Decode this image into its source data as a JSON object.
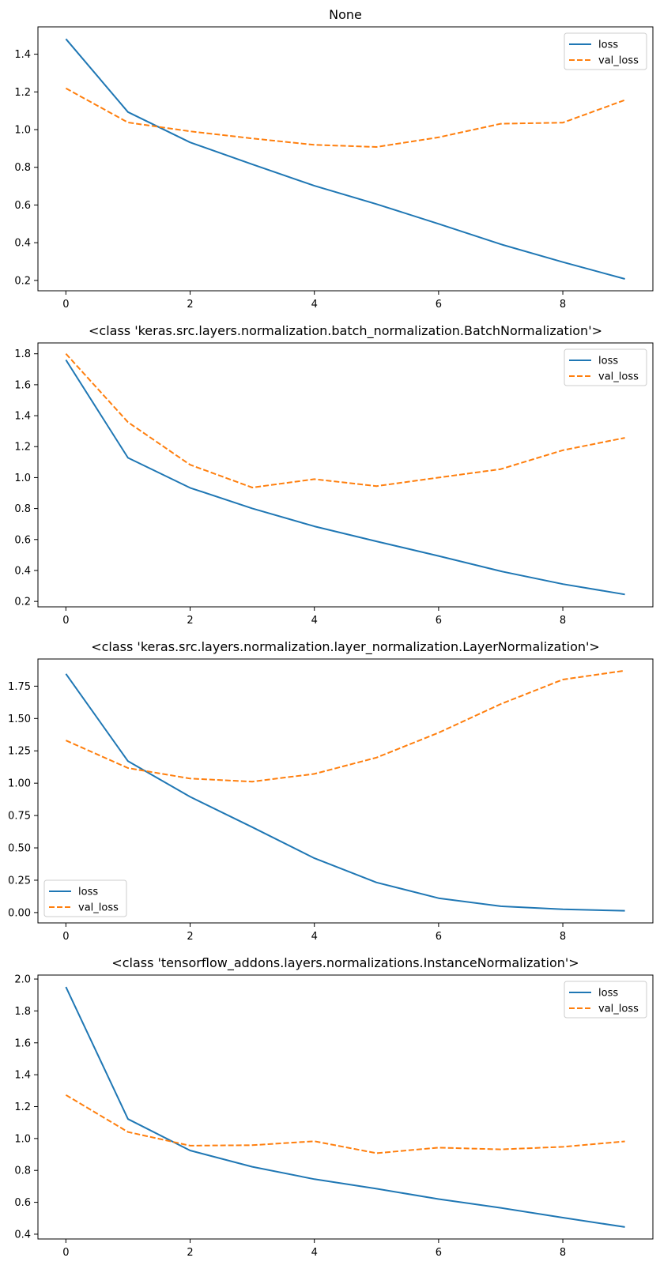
{
  "colors": {
    "loss": "#1f77b4",
    "val_loss": "#ff7f0e",
    "axes": "#000000",
    "legend_border": "#cccccc"
  },
  "chart_data": [
    {
      "type": "line",
      "title": "None",
      "x": [
        0,
        1,
        2,
        3,
        4,
        5,
        6,
        7,
        8,
        9
      ],
      "xlim": [
        -0.45,
        9.45
      ],
      "ylim": [
        0.145,
        1.545
      ],
      "xticks": [
        0,
        2,
        4,
        6,
        8
      ],
      "yticks": [
        0.2,
        0.4,
        0.6,
        0.8,
        1.0,
        1.2,
        1.4
      ],
      "ytick_labels": [
        "0.2",
        "0.4",
        "0.6",
        "0.8",
        "1.0",
        "1.2",
        "1.4"
      ],
      "legend": "upper-right",
      "series": [
        {
          "name": "loss",
          "style": "solid",
          "values": [
            1.481,
            1.093,
            0.932,
            0.816,
            0.702,
            0.605,
            0.5,
            0.392,
            0.297,
            0.208
          ]
        },
        {
          "name": "val_loss",
          "style": "dashed",
          "values": [
            1.219,
            1.038,
            0.991,
            0.953,
            0.919,
            0.908,
            0.959,
            1.031,
            1.037,
            1.157
          ]
        }
      ]
    },
    {
      "type": "line",
      "title": "<class 'keras.src.layers.normalization.batch_normalization.BatchNormalization'>",
      "x": [
        0,
        1,
        2,
        3,
        4,
        5,
        6,
        7,
        8,
        9
      ],
      "xlim": [
        -0.45,
        9.45
      ],
      "ylim": [
        0.165,
        1.87
      ],
      "xticks": [
        0,
        2,
        4,
        6,
        8
      ],
      "yticks": [
        0.2,
        0.4,
        0.6,
        0.8,
        1.0,
        1.2,
        1.4,
        1.6,
        1.8
      ],
      "ytick_labels": [
        "0.2",
        "0.4",
        "0.6",
        "0.8",
        "1.0",
        "1.2",
        "1.4",
        "1.6",
        "1.8"
      ],
      "legend": "upper-right",
      "series": [
        {
          "name": "loss",
          "style": "solid",
          "values": [
            1.76,
            1.128,
            0.934,
            0.801,
            0.685,
            0.588,
            0.494,
            0.395,
            0.312,
            0.245
          ]
        },
        {
          "name": "val_loss",
          "style": "dashed",
          "values": [
            1.8,
            1.358,
            1.083,
            0.936,
            0.99,
            0.945,
            1.0,
            1.055,
            1.177,
            1.257
          ]
        }
      ]
    },
    {
      "type": "line",
      "title": "<class 'keras.src.layers.normalization.layer_normalization.LayerNormalization'>",
      "x": [
        0,
        1,
        2,
        3,
        4,
        5,
        6,
        7,
        8,
        9
      ],
      "xlim": [
        -0.45,
        9.45
      ],
      "ylim": [
        -0.08,
        1.96
      ],
      "xticks": [
        0,
        2,
        4,
        6,
        8
      ],
      "yticks": [
        0.0,
        0.25,
        0.5,
        0.75,
        1.0,
        1.25,
        1.5,
        1.75
      ],
      "ytick_labels": [
        "0.00",
        "0.25",
        "0.50",
        "0.75",
        "1.00",
        "1.25",
        "1.50",
        "1.75"
      ],
      "legend": "lower-left",
      "series": [
        {
          "name": "loss",
          "style": "solid",
          "values": [
            1.845,
            1.17,
            0.895,
            0.66,
            0.42,
            0.233,
            0.111,
            0.049,
            0.025,
            0.014
          ]
        },
        {
          "name": "val_loss",
          "style": "dashed",
          "values": [
            1.33,
            1.117,
            1.036,
            1.012,
            1.072,
            1.198,
            1.39,
            1.612,
            1.801,
            1.87
          ]
        }
      ]
    },
    {
      "type": "line",
      "title": "<class 'tensorflow_addons.layers.normalizations.InstanceNormalization'>",
      "x": [
        0,
        1,
        2,
        3,
        4,
        5,
        6,
        7,
        8,
        9
      ],
      "xlim": [
        -0.45,
        9.45
      ],
      "ylim": [
        0.37,
        2.025
      ],
      "xticks": [
        0,
        2,
        4,
        6,
        8
      ],
      "yticks": [
        0.4,
        0.6,
        0.8,
        1.0,
        1.2,
        1.4,
        1.6,
        1.8,
        2.0
      ],
      "ytick_labels": [
        "0.4",
        "0.6",
        "0.8",
        "1.0",
        "1.2",
        "1.4",
        "1.6",
        "1.8",
        "2.0"
      ],
      "legend": "upper-right",
      "series": [
        {
          "name": "loss",
          "style": "solid",
          "values": [
            1.95,
            1.122,
            0.925,
            0.823,
            0.745,
            0.685,
            0.62,
            0.565,
            0.504,
            0.445
          ]
        },
        {
          "name": "val_loss",
          "style": "dashed",
          "values": [
            1.273,
            1.041,
            0.955,
            0.958,
            0.983,
            0.908,
            0.943,
            0.932,
            0.948,
            0.982
          ]
        }
      ]
    }
  ]
}
